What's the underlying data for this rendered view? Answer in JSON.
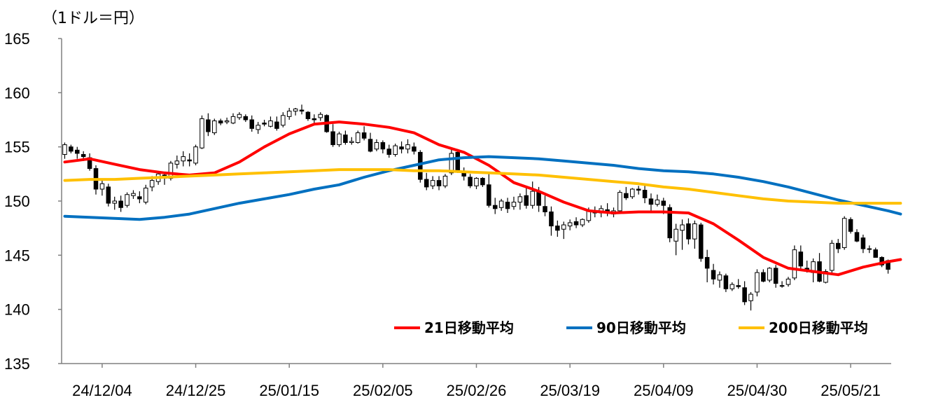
{
  "chart_data": {
    "type": "candlestick",
    "unit_label": "（1ドル＝円）",
    "ylim": [
      135,
      165
    ],
    "y_ticks": [
      "165",
      "160",
      "155",
      "150",
      "145",
      "140",
      "135"
    ],
    "x_tick_labels": [
      "24/12/04",
      "24/12/25",
      "25/01/15",
      "25/02/05",
      "25/02/26",
      "25/03/19",
      "25/04/09",
      "25/04/30",
      "25/05/21"
    ],
    "grid": false,
    "legend_position": "bottom-right",
    "legend": [
      {
        "label": "21日移動平均",
        "color": "#ff0000"
      },
      {
        "label": "90日移動平均",
        "color": "#0070c0"
      },
      {
        "label": "200日移動平均",
        "color": "#ffc000"
      }
    ],
    "candles": [
      [
        154.3,
        155.4,
        153.9,
        155.2
      ],
      [
        155.0,
        155.2,
        154.4,
        154.6
      ],
      [
        154.7,
        155.0,
        153.9,
        154.4
      ],
      [
        154.3,
        154.6,
        153.7,
        154.1
      ],
      [
        154.0,
        154.4,
        152.8,
        153.0
      ],
      [
        153.0,
        153.3,
        150.6,
        151.1
      ],
      [
        151.1,
        152.0,
        150.5,
        151.6
      ],
      [
        151.3,
        151.6,
        149.5,
        149.8
      ],
      [
        149.8,
        150.4,
        149.2,
        150.0
      ],
      [
        150.0,
        150.5,
        149.0,
        149.4
      ],
      [
        149.6,
        150.8,
        149.4,
        150.6
      ],
      [
        150.5,
        151.0,
        150.2,
        150.7
      ],
      [
        150.4,
        150.9,
        149.8,
        150.2
      ],
      [
        149.9,
        151.5,
        149.7,
        151.2
      ],
      [
        151.3,
        152.3,
        150.9,
        151.9
      ],
      [
        151.8,
        152.6,
        151.5,
        152.5
      ],
      [
        152.4,
        152.7,
        151.5,
        152.1
      ],
      [
        152.1,
        153.7,
        151.9,
        153.5
      ],
      [
        153.4,
        154.2,
        153.0,
        153.7
      ],
      [
        153.7,
        154.6,
        153.2,
        154.1
      ],
      [
        153.8,
        154.4,
        153.2,
        153.7
      ],
      [
        153.5,
        155.2,
        153.3,
        155.0
      ],
      [
        154.9,
        157.9,
        154.8,
        157.6
      ],
      [
        157.5,
        158.1,
        156.0,
        156.4
      ],
      [
        156.3,
        157.6,
        156.1,
        157.4
      ],
      [
        157.4,
        157.6,
        157.0,
        157.2
      ],
      [
        157.3,
        157.7,
        157.1,
        157.4
      ],
      [
        157.2,
        158.1,
        157.1,
        157.8
      ],
      [
        157.7,
        158.2,
        157.5,
        158.0
      ],
      [
        157.8,
        158.0,
        157.3,
        157.5
      ],
      [
        157.5,
        157.9,
        156.4,
        156.7
      ],
      [
        156.6,
        157.3,
        156.2,
        157.0
      ],
      [
        157.2,
        157.5,
        156.9,
        157.1
      ],
      [
        156.9,
        157.8,
        156.8,
        157.4
      ],
      [
        157.3,
        157.8,
        156.5,
        156.7
      ],
      [
        157.0,
        158.2,
        156.8,
        157.9
      ],
      [
        157.8,
        158.6,
        157.5,
        158.3
      ],
      [
        158.3,
        158.6,
        157.9,
        158.5
      ],
      [
        158.4,
        158.9,
        158.0,
        158.3
      ],
      [
        158.2,
        158.3,
        157.4,
        157.6
      ],
      [
        157.6,
        158.0,
        157.0,
        157.5
      ],
      [
        157.7,
        158.2,
        157.4,
        158.0
      ],
      [
        157.9,
        158.0,
        156.3,
        156.4
      ],
      [
        156.4,
        157.1,
        155.0,
        155.2
      ],
      [
        155.2,
        156.4,
        155.0,
        156.2
      ],
      [
        156.1,
        156.5,
        155.2,
        155.4
      ],
      [
        155.4,
        155.9,
        155.2,
        155.5
      ],
      [
        155.4,
        156.5,
        155.3,
        156.3
      ],
      [
        156.3,
        156.9,
        155.6,
        155.8
      ],
      [
        155.7,
        156.3,
        154.5,
        154.6
      ],
      [
        154.8,
        155.7,
        154.6,
        155.4
      ],
      [
        155.4,
        155.6,
        154.4,
        154.8
      ],
      [
        154.8,
        155.2,
        154.0,
        154.3
      ],
      [
        154.3,
        155.3,
        154.1,
        155.1
      ],
      [
        155.0,
        155.5,
        154.4,
        154.8
      ],
      [
        154.8,
        155.7,
        154.4,
        155.2
      ],
      [
        155.0,
        155.4,
        154.3,
        154.6
      ],
      [
        154.5,
        154.7,
        151.7,
        152.0
      ],
      [
        152.0,
        152.6,
        151.0,
        151.3
      ],
      [
        151.4,
        152.3,
        151.1,
        151.9
      ],
      [
        151.9,
        152.3,
        151.0,
        151.4
      ],
      [
        151.4,
        152.5,
        151.2,
        152.3
      ],
      [
        152.6,
        154.9,
        152.4,
        154.4
      ],
      [
        154.5,
        154.8,
        152.6,
        152.8
      ],
      [
        152.7,
        153.1,
        151.9,
        152.3
      ],
      [
        152.2,
        152.5,
        151.2,
        151.4
      ],
      [
        151.4,
        152.2,
        151.1,
        152.1
      ],
      [
        152.1,
        152.2,
        151.3,
        151.5
      ],
      [
        151.5,
        152.5,
        149.4,
        149.6
      ],
      [
        149.6,
        150.3,
        148.8,
        149.3
      ],
      [
        149.4,
        150.2,
        149.1,
        150.0
      ],
      [
        149.9,
        150.3,
        148.9,
        149.3
      ],
      [
        149.5,
        150.4,
        149.2,
        149.9
      ],
      [
        149.9,
        150.7,
        149.2,
        150.4
      ],
      [
        150.5,
        151.2,
        149.3,
        149.6
      ],
      [
        149.6,
        151.8,
        149.3,
        150.9
      ],
      [
        150.8,
        151.3,
        149.0,
        149.6
      ],
      [
        149.5,
        150.5,
        148.6,
        149.0
      ],
      [
        149.0,
        149.5,
        146.8,
        147.7
      ],
      [
        147.7,
        148.2,
        146.7,
        147.3
      ],
      [
        147.4,
        148.1,
        146.5,
        147.8
      ],
      [
        147.7,
        148.3,
        147.3,
        148.0
      ],
      [
        148.1,
        148.5,
        147.5,
        147.8
      ],
      [
        147.8,
        148.4,
        147.6,
        148.3
      ],
      [
        148.2,
        149.4,
        148.0,
        149.1
      ],
      [
        149.1,
        149.5,
        148.5,
        148.9
      ],
      [
        148.9,
        149.6,
        148.5,
        149.3
      ],
      [
        149.2,
        149.8,
        148.6,
        148.9
      ],
      [
        148.8,
        149.4,
        148.5,
        149.1
      ],
      [
        149.1,
        151.0,
        149.0,
        150.8
      ],
      [
        150.7,
        151.3,
        150.1,
        150.3
      ],
      [
        150.4,
        151.2,
        150.2,
        151.1
      ],
      [
        151.1,
        151.4,
        150.6,
        151.0
      ],
      [
        151.0,
        151.4,
        149.8,
        150.3
      ],
      [
        150.2,
        150.7,
        149.1,
        149.7
      ],
      [
        149.7,
        150.6,
        149.5,
        150.1
      ],
      [
        150.0,
        150.3,
        148.8,
        149.6
      ],
      [
        149.4,
        149.7,
        146.2,
        146.6
      ],
      [
        146.3,
        147.9,
        145.0,
        147.4
      ],
      [
        147.3,
        148.3,
        145.5,
        147.8
      ],
      [
        147.9,
        148.4,
        146.0,
        146.5
      ],
      [
        146.5,
        148.2,
        145.6,
        147.9
      ],
      [
        147.8,
        148.0,
        144.4,
        144.7
      ],
      [
        144.8,
        145.5,
        142.5,
        143.8
      ],
      [
        143.6,
        144.2,
        142.3,
        142.8
      ],
      [
        142.7,
        143.5,
        142.0,
        143.2
      ],
      [
        143.1,
        143.3,
        141.6,
        141.9
      ],
      [
        141.9,
        142.5,
        141.7,
        142.3
      ],
      [
        142.2,
        142.8,
        141.9,
        142.1
      ],
      [
        142.0,
        142.6,
        140.4,
        140.7
      ],
      [
        140.8,
        141.6,
        139.9,
        141.4
      ],
      [
        141.6,
        143.7,
        141.2,
        143.4
      ],
      [
        143.4,
        143.7,
        142.5,
        142.6
      ],
      [
        142.7,
        143.9,
        142.5,
        143.8
      ],
      [
        143.8,
        144.1,
        142.0,
        142.4
      ],
      [
        142.2,
        142.6,
        142.0,
        142.2
      ],
      [
        142.3,
        143.0,
        142.1,
        142.8
      ],
      [
        142.9,
        145.9,
        142.7,
        145.5
      ],
      [
        145.3,
        145.9,
        143.7,
        144.0
      ],
      [
        143.8,
        144.5,
        143.4,
        143.5
      ],
      [
        143.4,
        144.7,
        142.5,
        144.4
      ],
      [
        144.4,
        145.2,
        142.5,
        142.6
      ],
      [
        142.5,
        143.7,
        142.4,
        143.5
      ],
      [
        143.6,
        146.4,
        143.4,
        146.1
      ],
      [
        146.1,
        146.5,
        145.2,
        145.6
      ],
      [
        145.7,
        148.6,
        145.5,
        148.4
      ],
      [
        148.3,
        148.5,
        147.0,
        147.2
      ],
      [
        147.1,
        147.4,
        146.2,
        146.3
      ],
      [
        146.6,
        146.9,
        145.2,
        145.6
      ],
      [
        145.6,
        145.9,
        145.2,
        145.6
      ],
      [
        145.5,
        145.7,
        144.8,
        144.8
      ],
      [
        144.8,
        144.9,
        143.9,
        144.1
      ],
      [
        144.5,
        144.6,
        143.3,
        143.7
      ]
    ],
    "series": [
      {
        "name": "21日移動平均",
        "color": "#ff0000",
        "x": [
          0,
          4,
          8,
          12,
          16,
          20,
          24,
          28,
          32,
          36,
          40,
          44,
          48,
          52,
          56,
          60,
          64,
          68,
          72,
          76,
          80,
          84,
          88,
          92,
          96,
          100,
          104,
          108,
          112,
          116,
          120,
          124,
          128,
          132,
          134
        ],
        "values": [
          153.6,
          153.9,
          153.4,
          152.9,
          152.6,
          152.4,
          152.6,
          153.6,
          155.0,
          156.2,
          157.1,
          157.3,
          157.1,
          156.8,
          156.3,
          155.2,
          154.5,
          153.3,
          151.7,
          150.9,
          149.9,
          149.1,
          148.9,
          149.0,
          149.0,
          148.9,
          147.9,
          146.4,
          144.8,
          143.8,
          143.5,
          143.2,
          143.9,
          144.4,
          144.6
        ]
      },
      {
        "name": "90日移動平均",
        "color": "#0070c0",
        "x": [
          0,
          4,
          8,
          12,
          16,
          20,
          24,
          28,
          32,
          36,
          40,
          44,
          48,
          52,
          56,
          60,
          64,
          68,
          72,
          76,
          80,
          84,
          88,
          92,
          96,
          100,
          104,
          108,
          112,
          116,
          120,
          124,
          128,
          132,
          134
        ],
        "values": [
          148.6,
          148.5,
          148.4,
          148.3,
          148.5,
          148.8,
          149.3,
          149.8,
          150.2,
          150.6,
          151.1,
          151.5,
          152.2,
          152.8,
          153.3,
          153.8,
          154.0,
          154.1,
          154.0,
          153.9,
          153.7,
          153.5,
          153.3,
          153.0,
          152.8,
          152.7,
          152.5,
          152.2,
          151.8,
          151.3,
          150.7,
          150.1,
          149.6,
          149.1,
          148.8
        ]
      },
      {
        "name": "200日移動平均",
        "color": "#ffc000",
        "x": [
          0,
          4,
          8,
          12,
          16,
          20,
          24,
          28,
          32,
          36,
          40,
          44,
          48,
          52,
          56,
          60,
          64,
          68,
          72,
          76,
          80,
          84,
          88,
          92,
          96,
          100,
          104,
          108,
          112,
          116,
          120,
          124,
          128,
          132,
          134
        ],
        "values": [
          151.9,
          152.0,
          152.0,
          152.1,
          152.2,
          152.3,
          152.4,
          152.5,
          152.6,
          152.7,
          152.8,
          152.9,
          152.9,
          152.9,
          152.8,
          152.8,
          152.7,
          152.6,
          152.5,
          152.4,
          152.2,
          152.0,
          151.8,
          151.6,
          151.3,
          151.1,
          150.8,
          150.5,
          150.2,
          150.0,
          149.9,
          149.8,
          149.8,
          149.8,
          149.8
        ]
      }
    ]
  }
}
